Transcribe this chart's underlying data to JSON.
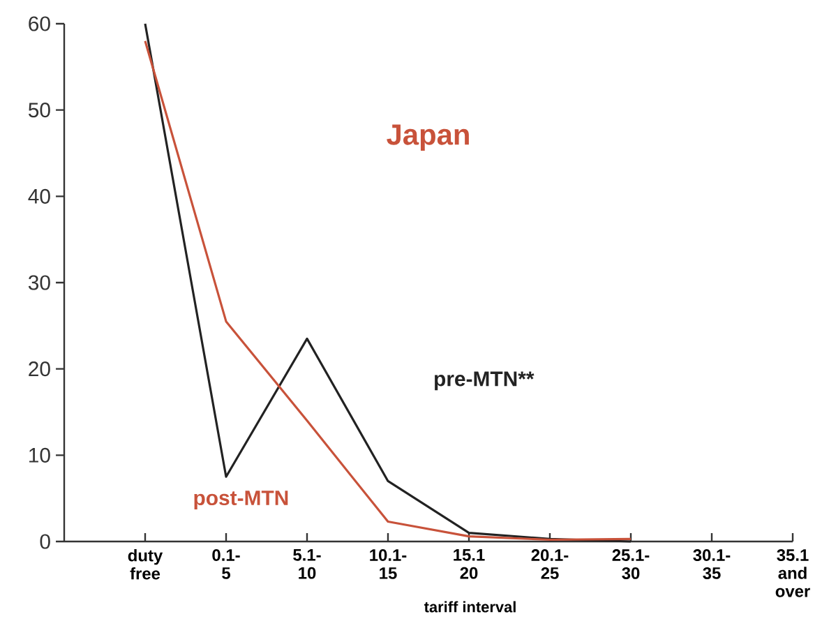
{
  "chart_data": {
    "type": "line",
    "title": "Japan",
    "xlabel": "tariff interval",
    "categories": [
      "duty free",
      "0.1- 5",
      "5.1- 10",
      "10.1- 15",
      "15.1 20",
      "20.1- 25",
      "25.1- 30",
      "30.1- 35",
      "35.1 and over"
    ],
    "series": [
      {
        "name": "pre-MTN**",
        "color": "#222222",
        "values": [
          60,
          7.5,
          23.5,
          7,
          1,
          0.3,
          0,
          null,
          null
        ]
      },
      {
        "name": "post-MTN",
        "color": "#c8523a",
        "values": [
          58,
          25.5,
          14,
          2.3,
          0.6,
          0.2,
          0.3,
          null,
          null
        ]
      }
    ],
    "ylim": [
      0,
      60
    ],
    "yticks": [
      0,
      10,
      20,
      30,
      40,
      50,
      60
    ],
    "legend": false,
    "grid": false,
    "marker": "none",
    "line_style": "solid"
  }
}
